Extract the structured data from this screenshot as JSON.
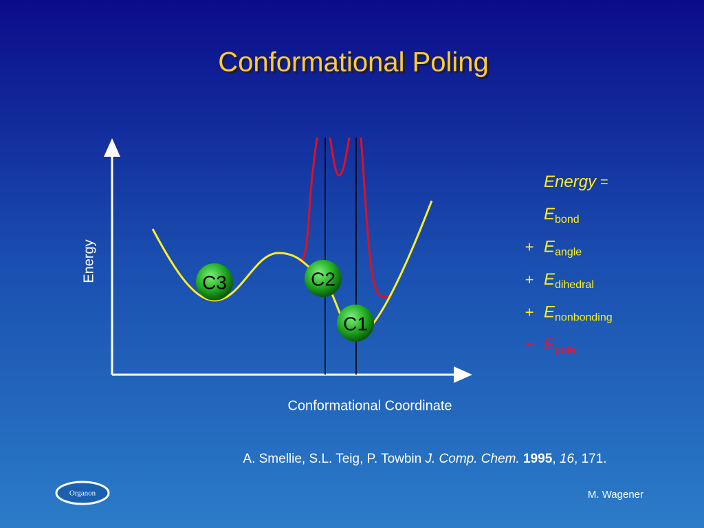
{
  "title": "Conformational Poling",
  "diagram": {
    "y_axis_label": "Energy",
    "x_axis_label": "Conformational Coordinate",
    "states": [
      {
        "label": "C3"
      },
      {
        "label": "C2"
      },
      {
        "label": "C1"
      }
    ]
  },
  "equation": {
    "lhs": "Energy",
    "equals": "=",
    "terms": [
      {
        "symbol": "E",
        "subscript": "bond"
      },
      {
        "sign": "+",
        "symbol": "E",
        "subscript": "angle"
      },
      {
        "sign": "+",
        "symbol": "E",
        "subscript": "dihedral"
      },
      {
        "sign": "+",
        "symbol": "E",
        "subscript": "nonbonding"
      },
      {
        "sign": "+",
        "symbol": "E",
        "subscript": "pole"
      }
    ]
  },
  "citation": {
    "authors": "A. Smellie, S.L. Teig, P. Towbin",
    "journal": "J. Comp. Chem.",
    "year": "1995",
    "sep": ",",
    "volume": "16",
    "pages": ", 171."
  },
  "logo": "Organon",
  "author": "M. Wagener"
}
